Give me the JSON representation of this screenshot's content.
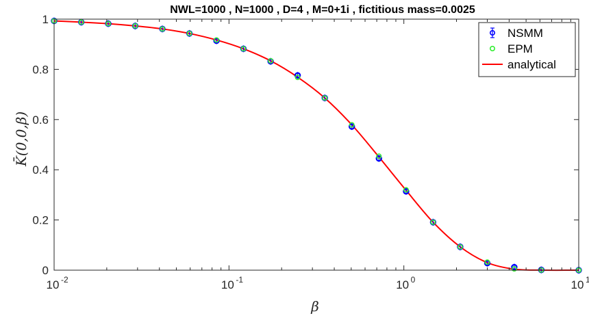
{
  "chart_data": {
    "type": "scatter",
    "title": "NWL=1000 ,    N=1000 ,    D=4 ,    M=0+1i ,    fictitious mass=0.0025",
    "xlabel": "β",
    "ylabel": "K̄(0,0,β)",
    "xscale": "log",
    "xlim": [
      0.01,
      10
    ],
    "ylim": [
      0,
      1
    ],
    "xticks": [
      {
        "value": 0.01,
        "base": "10",
        "exp": "-2"
      },
      {
        "value": 0.1,
        "base": "10",
        "exp": "-1"
      },
      {
        "value": 1,
        "base": "10",
        "exp": "0"
      },
      {
        "value": 10,
        "base": "10",
        "exp": "1"
      }
    ],
    "yticks": [
      {
        "value": 0,
        "label": "0"
      },
      {
        "value": 0.2,
        "label": "0.2"
      },
      {
        "value": 0.4,
        "label": "0.4"
      },
      {
        "value": 0.6,
        "label": "0.6"
      },
      {
        "value": 0.8,
        "label": "0.8"
      },
      {
        "value": 1,
        "label": "1"
      }
    ],
    "grid": false,
    "legend_position": "top-right",
    "x": [
      0.01,
      0.0143,
      0.0204,
      0.0291,
      0.0416,
      0.0594,
      0.0848,
      0.121,
      0.173,
      0.247,
      0.353,
      0.504,
      0.72,
      1.03,
      1.47,
      2.1,
      3.0,
      4.28,
      6.11,
      10.0
    ],
    "series": [
      {
        "name": "NSMM",
        "marker": "circle-errorbar",
        "color": "#0000ff",
        "y": [
          0.993,
          0.988,
          0.982,
          0.973,
          0.961,
          0.943,
          0.914,
          0.882,
          0.832,
          0.776,
          0.686,
          0.572,
          0.445,
          0.314,
          0.191,
          0.093,
          0.028,
          0.012,
          0.001,
          0.0
        ]
      },
      {
        "name": "EPM",
        "marker": "circle-open",
        "color": "#33ee33",
        "y": [
          0.993,
          0.988,
          0.982,
          0.973,
          0.961,
          0.943,
          0.917,
          0.882,
          0.834,
          0.768,
          0.686,
          0.579,
          0.454,
          0.32,
          0.191,
          0.093,
          0.032,
          0.005,
          0.0005,
          0.0
        ]
      },
      {
        "name": "analytical",
        "marker": "line",
        "color": "#ff0000",
        "y": [
          0.993,
          0.988,
          0.982,
          0.973,
          0.961,
          0.943,
          0.917,
          0.882,
          0.834,
          0.769,
          0.686,
          0.579,
          0.451,
          0.318,
          0.191,
          0.093,
          0.03,
          0.004,
          0.0002,
          0.0
        ]
      }
    ]
  }
}
